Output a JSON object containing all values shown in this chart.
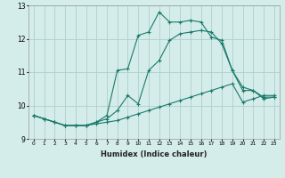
{
  "xlabel": "Humidex (Indice chaleur)",
  "ylabel": "",
  "bg_color": "#d4ecea",
  "grid_color": "#b0cfcc",
  "line_color": "#1a7a6a",
  "xlim": [
    -0.5,
    23.5
  ],
  "ylim": [
    9.0,
    13.0
  ],
  "yticks": [
    9,
    10,
    11,
    12,
    13
  ],
  "xticks": [
    0,
    1,
    2,
    3,
    4,
    5,
    6,
    7,
    8,
    9,
    10,
    11,
    12,
    13,
    14,
    15,
    16,
    17,
    18,
    19,
    20,
    21,
    22,
    23
  ],
  "series": [
    {
      "x": [
        0,
        1,
        2,
        3,
        4,
        5,
        6,
        7,
        8,
        9,
        10,
        11,
        12,
        13,
        14,
        15,
        16,
        17,
        18,
        19,
        20,
        21,
        22,
        23
      ],
      "y": [
        9.7,
        9.6,
        9.5,
        9.4,
        9.4,
        9.4,
        9.45,
        9.5,
        9.55,
        9.65,
        9.75,
        9.85,
        9.95,
        10.05,
        10.15,
        10.25,
        10.35,
        10.45,
        10.55,
        10.65,
        10.1,
        10.2,
        10.3,
        10.3
      ]
    },
    {
      "x": [
        0,
        1,
        2,
        3,
        4,
        5,
        6,
        7,
        8,
        9,
        10,
        11,
        12,
        13,
        14,
        15,
        16,
        17,
        18,
        19,
        20,
        21,
        22,
        23
      ],
      "y": [
        9.7,
        9.6,
        9.5,
        9.4,
        9.4,
        9.4,
        9.5,
        9.6,
        9.85,
        10.3,
        10.05,
        11.05,
        11.35,
        11.95,
        12.15,
        12.2,
        12.25,
        12.2,
        11.85,
        11.05,
        10.55,
        10.45,
        10.25,
        10.25
      ]
    },
    {
      "x": [
        0,
        1,
        2,
        3,
        4,
        5,
        6,
        7,
        8,
        9,
        10,
        11,
        12,
        13,
        14,
        15,
        16,
        17,
        18,
        19,
        20,
        21,
        22,
        23
      ],
      "y": [
        9.7,
        9.6,
        9.5,
        9.4,
        9.4,
        9.4,
        9.5,
        9.7,
        11.05,
        11.1,
        12.1,
        12.2,
        12.8,
        12.5,
        12.5,
        12.55,
        12.5,
        12.05,
        11.95,
        11.05,
        10.45,
        10.45,
        10.2,
        10.25
      ]
    }
  ]
}
